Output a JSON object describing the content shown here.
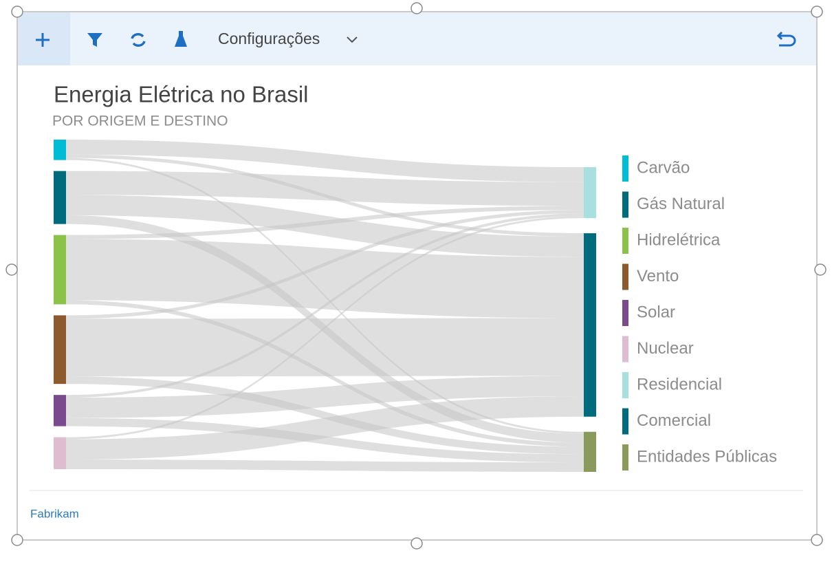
{
  "toolbar": {
    "menu": "Configurações"
  },
  "footer": {
    "source": "Fabrikam"
  },
  "chart_data": {
    "type": "sankey",
    "title": "Energia Elétrica no Brasil",
    "subtitle": "POR ORIGEM E DESTINO",
    "link_color": "#c4c4c4",
    "nodes": [
      {
        "name": "Carvão",
        "color": "#00bcd4",
        "side": "source"
      },
      {
        "name": "Gás Natural",
        "color": "#006b7d",
        "side": "source"
      },
      {
        "name": "Hidrelétrica",
        "color": "#8bc34a",
        "side": "source"
      },
      {
        "name": "Vento",
        "color": "#8d5a2e",
        "side": "source"
      },
      {
        "name": "Solar",
        "color": "#7b4a8e",
        "side": "source"
      },
      {
        "name": "Nuclear",
        "color": "#dfbcd0",
        "side": "source"
      },
      {
        "name": "Residencial",
        "color": "#a8e0e0",
        "side": "target"
      },
      {
        "name": "Comercial",
        "color": "#006b7d",
        "side": "target"
      },
      {
        "name": "Entidades Públicas",
        "color": "#8a9a5b",
        "side": "target"
      }
    ],
    "links": [
      {
        "source": "Carvão",
        "target": "Residencial",
        "value": 22
      },
      {
        "source": "Carvão",
        "target": "Comercial",
        "value": 5
      },
      {
        "source": "Carvão",
        "target": "Entidades Públicas",
        "value": 3
      },
      {
        "source": "Gás Natural",
        "target": "Residencial",
        "value": 35
      },
      {
        "source": "Gás Natural",
        "target": "Comercial",
        "value": 30
      },
      {
        "source": "Gás Natural",
        "target": "Entidades Públicas",
        "value": 13
      },
      {
        "source": "Hidrelétrica",
        "target": "Residencial",
        "value": 6
      },
      {
        "source": "Hidrelétrica",
        "target": "Comercial",
        "value": 90
      },
      {
        "source": "Hidrelétrica",
        "target": "Entidades Públicas",
        "value": 6
      },
      {
        "source": "Vento",
        "target": "Residencial",
        "value": 5
      },
      {
        "source": "Vento",
        "target": "Comercial",
        "value": 85
      },
      {
        "source": "Vento",
        "target": "Entidades Públicas",
        "value": 11
      },
      {
        "source": "Solar",
        "target": "Residencial",
        "value": 4
      },
      {
        "source": "Solar",
        "target": "Comercial",
        "value": 30
      },
      {
        "source": "Solar",
        "target": "Entidades Públicas",
        "value": 12
      },
      {
        "source": "Nuclear",
        "target": "Residencial",
        "value": 3
      },
      {
        "source": "Nuclear",
        "target": "Comercial",
        "value": 30
      },
      {
        "source": "Nuclear",
        "target": "Entidades Públicas",
        "value": 14
      }
    ]
  }
}
